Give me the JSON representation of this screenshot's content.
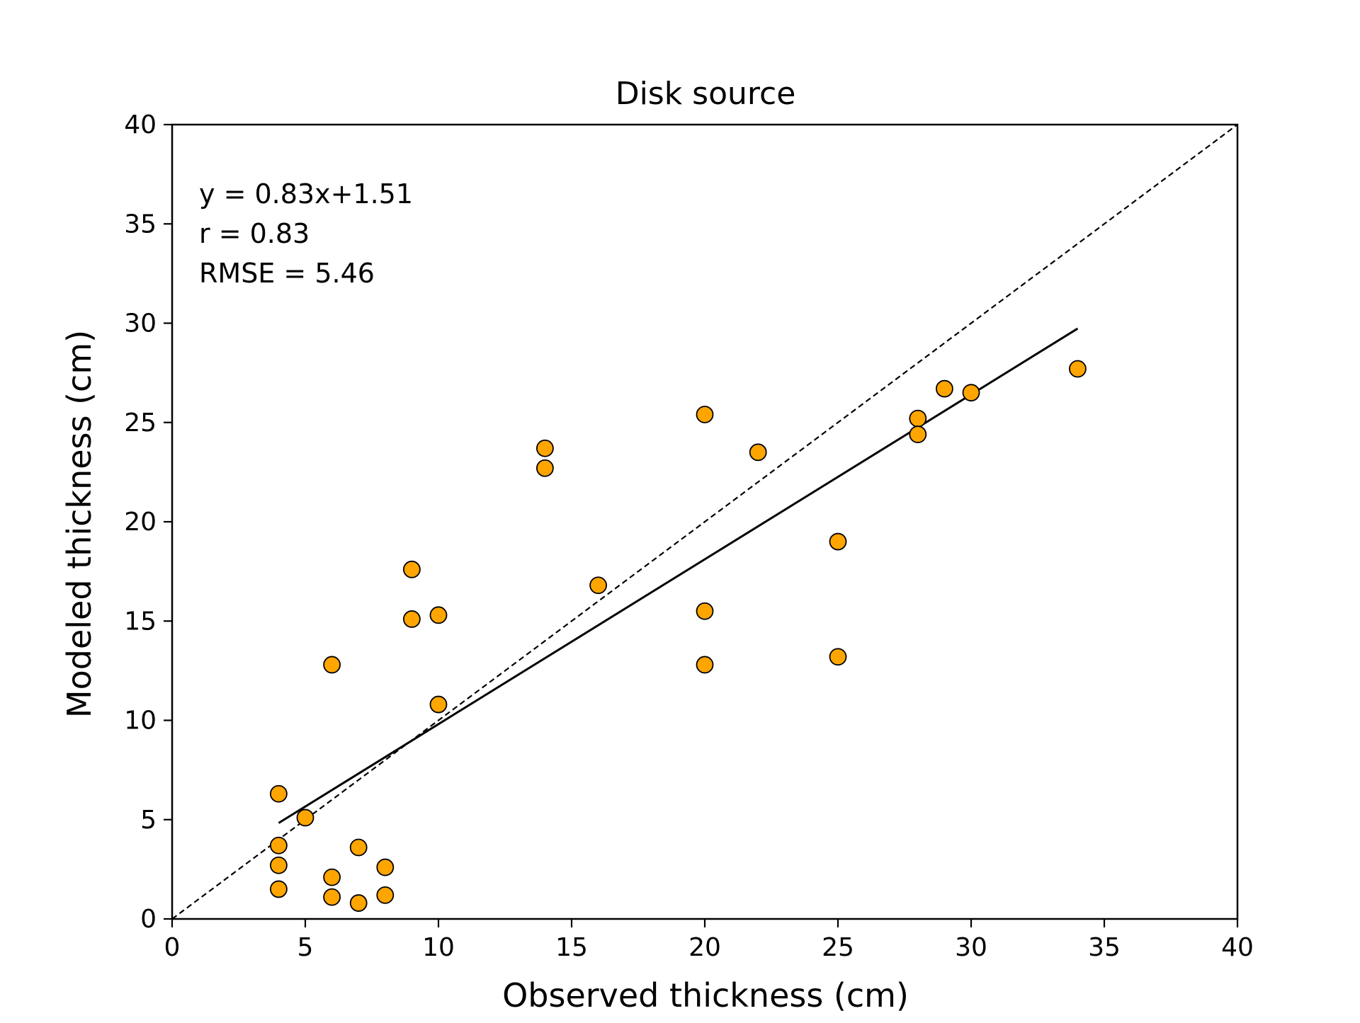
{
  "chart_data": {
    "type": "scatter",
    "title": "Disk source",
    "xlabel": "Observed thickness (cm)",
    "ylabel": "Modeled thickness (cm)",
    "xlim": [
      0,
      40
    ],
    "ylim": [
      0,
      40
    ],
    "xticks": [
      0,
      5,
      10,
      15,
      20,
      25,
      30,
      35,
      40
    ],
    "yticks": [
      0,
      5,
      10,
      15,
      20,
      25,
      30,
      35,
      40
    ],
    "grid": false,
    "marker_color": "#FFA500",
    "marker_edge_color": "#000000",
    "annotations": [
      "y = 0.83x+1.51",
      "r = 0.83",
      "RMSE = 5.46"
    ],
    "fit_line": {
      "slope": 0.83,
      "intercept": 1.51,
      "x_range": [
        4,
        34
      ]
    },
    "identity_line": {
      "x_range": [
        0,
        40
      ]
    },
    "points": [
      {
        "x": 4,
        "y": 6.3
      },
      {
        "x": 4,
        "y": 3.7
      },
      {
        "x": 4,
        "y": 2.7
      },
      {
        "x": 4,
        "y": 1.5
      },
      {
        "x": 5,
        "y": 5.1
      },
      {
        "x": 6,
        "y": 12.8
      },
      {
        "x": 6,
        "y": 2.1
      },
      {
        "x": 6,
        "y": 1.1
      },
      {
        "x": 7,
        "y": 3.6
      },
      {
        "x": 7,
        "y": 0.8
      },
      {
        "x": 8,
        "y": 2.6
      },
      {
        "x": 8,
        "y": 1.2
      },
      {
        "x": 9,
        "y": 17.6
      },
      {
        "x": 9,
        "y": 15.1
      },
      {
        "x": 10,
        "y": 15.3
      },
      {
        "x": 10,
        "y": 10.8
      },
      {
        "x": 14,
        "y": 23.7
      },
      {
        "x": 14,
        "y": 22.7
      },
      {
        "x": 16,
        "y": 16.8
      },
      {
        "x": 20,
        "y": 25.4
      },
      {
        "x": 20,
        "y": 15.5
      },
      {
        "x": 20,
        "y": 12.8
      },
      {
        "x": 22,
        "y": 23.5
      },
      {
        "x": 25,
        "y": 19.0
      },
      {
        "x": 25,
        "y": 13.2
      },
      {
        "x": 28,
        "y": 25.2
      },
      {
        "x": 28,
        "y": 24.4
      },
      {
        "x": 29,
        "y": 26.7
      },
      {
        "x": 30,
        "y": 26.5
      },
      {
        "x": 34,
        "y": 27.7
      }
    ]
  }
}
